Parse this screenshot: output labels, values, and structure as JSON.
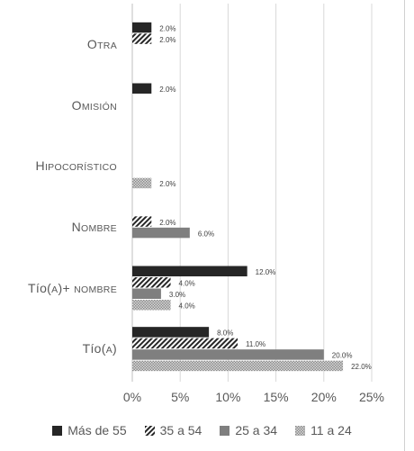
{
  "chart_data": {
    "type": "bar",
    "orientation": "horizontal",
    "categories": [
      {
        "big": "O",
        "small": "TRA"
      },
      {
        "big": "O",
        "small": "MISIÓN"
      },
      {
        "big": "H",
        "small": "IPOCORÍSTICO"
      },
      {
        "big": "N",
        "small": "OMBRE"
      },
      {
        "big": "T",
        "small": "ÍO(A)+ NOMBRE",
        "caseNote": "mixed"
      },
      {
        "big": "T",
        "small": "ÍO(A)",
        "caseNote": "mixed"
      }
    ],
    "category_labels": [
      "Otra",
      "Omisión",
      "Hipocorístico",
      "Nombre",
      "Tío(a)+ nombre",
      "Tío(a)"
    ],
    "series": [
      {
        "name": "Más de 55",
        "values": [
          2.0,
          2.0,
          null,
          null,
          12.0,
          8.0
        ],
        "color": "#262626",
        "pattern": "solid"
      },
      {
        "name": "35 a 54",
        "values": [
          2.0,
          null,
          null,
          2.0,
          4.0,
          11.0
        ],
        "color": "#262626",
        "pattern": "hatch"
      },
      {
        "name": "25 a 34",
        "values": [
          null,
          null,
          null,
          6.0,
          3.0,
          20.0
        ],
        "color": "#7f7f7f",
        "pattern": "solid"
      },
      {
        "name": "11 a 24",
        "values": [
          null,
          null,
          2.0,
          null,
          4.0,
          22.0
        ],
        "color": "#a6a6a6",
        "pattern": "dots"
      }
    ],
    "value_format": "%",
    "xlim": [
      0,
      25
    ],
    "xticks": [
      "0%",
      "5%",
      "10%",
      "15%",
      "20%",
      "25%"
    ],
    "grid": "vertical",
    "legend_position": "bottom"
  }
}
